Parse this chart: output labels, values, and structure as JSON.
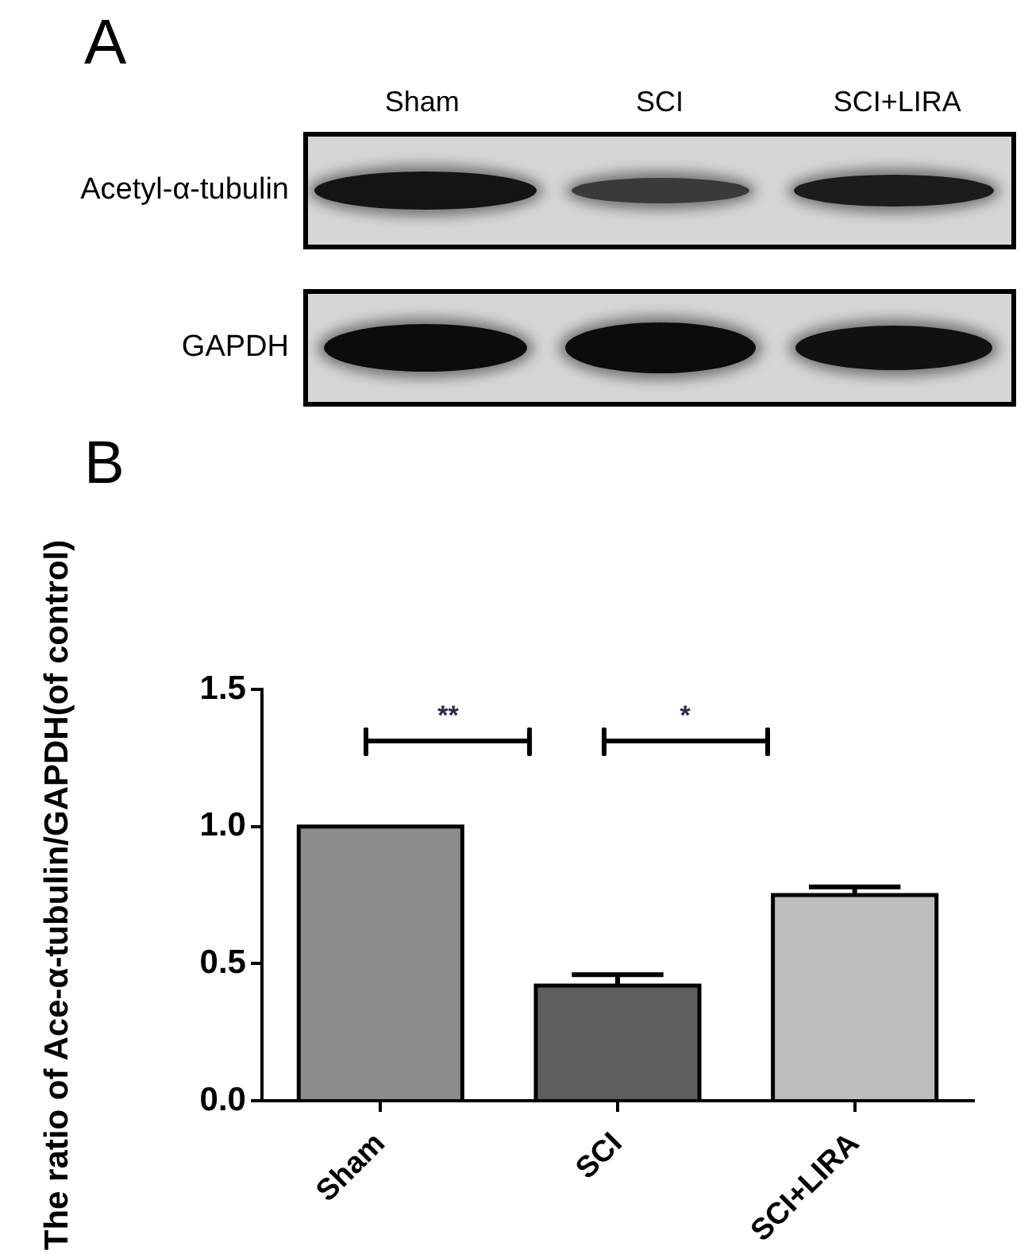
{
  "chart_data": [
    {
      "type": "other",
      "title": "A",
      "categories": [
        "Sham",
        "SCI",
        "SCI+LIRA"
      ],
      "y_categories": [
        "Acetyl-α-tubulin",
        "GAPDH"
      ]
    },
    {
      "type": "bar",
      "title": "B",
      "ylabel": "The ratio of Ace-α-tubulin/GAPDH(of control)",
      "categories": [
        "Sham",
        "SCI",
        "SCI+LIRA"
      ],
      "values": [
        1.0,
        0.42,
        0.75
      ],
      "errors": [
        null,
        [
          0.42,
          0.46
        ],
        [
          0.75,
          0.78
        ]
      ],
      "colors": [
        "#8c8c8c",
        "#5e5e5e",
        "#bdbdbd"
      ],
      "ylim": [
        0,
        1.5
      ],
      "yticks": [
        {
          "value": 0,
          "label": "0.0"
        },
        {
          "value": 0.5,
          "label": "0.5"
        },
        {
          "value": 1,
          "label": "1.0"
        },
        {
          "value": 1.5,
          "label": "1.5"
        }
      ],
      "grid": false,
      "annotations": [
        "**",
        "*"
      ]
    }
  ]
}
